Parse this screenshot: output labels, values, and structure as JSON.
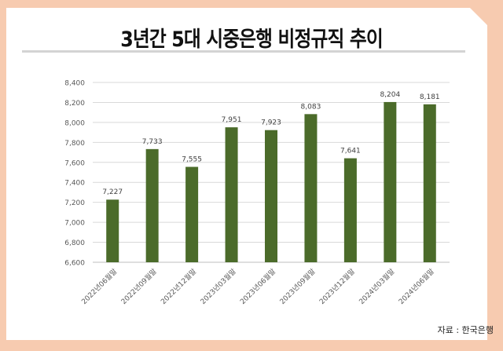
{
  "title": "3년간 5대 시중은행 비정규직 추이",
  "source": "자료 : 한국은행",
  "chart_data": {
    "type": "bar",
    "title": "",
    "xlabel": "",
    "ylabel": "",
    "categories": [
      "2022년06월말",
      "2022년09월말",
      "2022년12월말",
      "2023년03월말",
      "2023년06월말",
      "2023년09월말",
      "2023년12월말",
      "2024년03월말",
      "2024년06월말"
    ],
    "values": [
      7227,
      7733,
      7555,
      7951,
      7923,
      8083,
      7641,
      8204,
      8181
    ],
    "data_labels": [
      "7,227",
      "7,733",
      "7,555",
      "7,951",
      "7,923",
      "8,083",
      "7,641",
      "8,204",
      "8,181"
    ],
    "ylim": [
      6600,
      8400
    ],
    "yticks": [
      6600,
      6800,
      7000,
      7200,
      7400,
      7600,
      7800,
      8000,
      8200,
      8400
    ],
    "ytick_labels": [
      "6,600",
      "6,800",
      "7,000",
      "7,200",
      "7,400",
      "7,600",
      "7,800",
      "8,000",
      "8,200",
      "8,400"
    ],
    "grid": true,
    "bar_color": "#4b6b2a"
  }
}
